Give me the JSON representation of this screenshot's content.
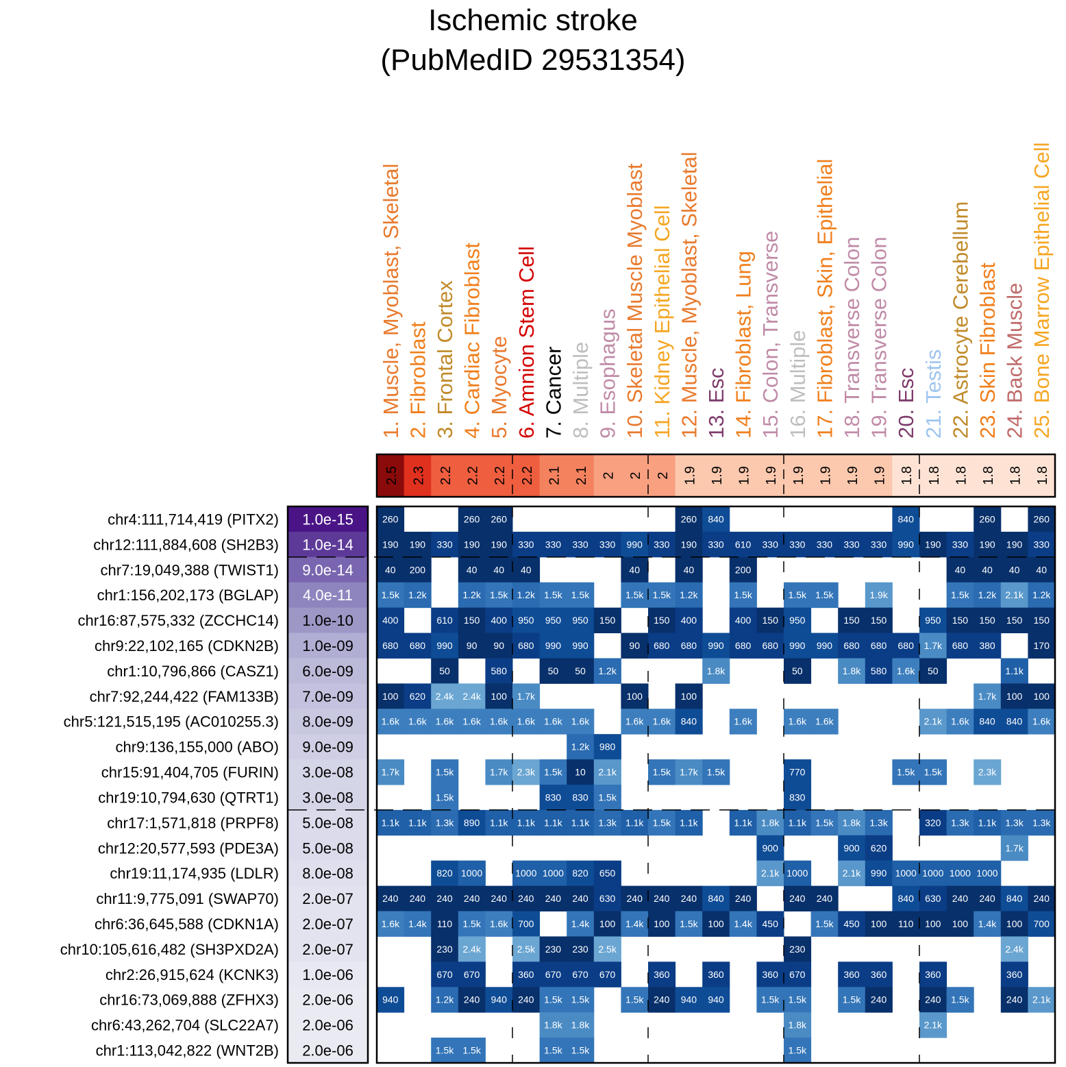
{
  "chart_data": {
    "type": "heatmap",
    "title": "Ischemic stroke",
    "subtitle": "(PubMedID 29531354)",
    "columns": [
      {
        "label": "1. Muscle, Myoblast, Skeletal",
        "color": "#E87A2E",
        "score": "2.5"
      },
      {
        "label": "2. Fibroblast",
        "color": "#F07F1C",
        "score": "2.3"
      },
      {
        "label": "3. Frontal Cortex",
        "color": "#C08A2A",
        "score": "2.2"
      },
      {
        "label": "4. Cardiac Fibroblast",
        "color": "#F07F1C",
        "score": "2.2"
      },
      {
        "label": "5. Myocyte",
        "color": "#E87A2E",
        "score": "2.2"
      },
      {
        "label": "6. Amnion Stem Cell",
        "color": "#D40000",
        "score": "2.2"
      },
      {
        "label": "7. Cancer",
        "color": "#000000",
        "score": "2.1"
      },
      {
        "label": "8. Multiple",
        "color": "#BEBEBE",
        "score": "2.1"
      },
      {
        "label": "9. Esophagus",
        "color": "#C08BA8",
        "score": "2"
      },
      {
        "label": "10. Skeletal Muscle Myoblast",
        "color": "#E87A2E",
        "score": "2"
      },
      {
        "label": "11. Kidney Epithelial Cell",
        "color": "#F5A623",
        "score": "2"
      },
      {
        "label": "12. Muscle, Myoblast, Skeletal",
        "color": "#E87A2E",
        "score": "1.9"
      },
      {
        "label": "13. Esc",
        "color": "#7E3B6B",
        "score": "1.9"
      },
      {
        "label": "14. Fibroblast, Lung",
        "color": "#F07F1C",
        "score": "1.9"
      },
      {
        "label": "15. Colon, Transverse",
        "color": "#C08BA8",
        "score": "1.9"
      },
      {
        "label": "16. Multiple",
        "color": "#BEBEBE",
        "score": "1.9"
      },
      {
        "label": "17. Fibroblast, Skin, Epithelial",
        "color": "#F07F1C",
        "score": "1.9"
      },
      {
        "label": "18. Transverse Colon",
        "color": "#C08BA8",
        "score": "1.9"
      },
      {
        "label": "19. Transverse Colon",
        "color": "#C08BA8",
        "score": "1.9"
      },
      {
        "label": "20. Esc",
        "color": "#7E3B6B",
        "score": "1.8"
      },
      {
        "label": "21. Testis",
        "color": "#9EC5F0",
        "score": "1.8"
      },
      {
        "label": "22. Astrocyte Cerebellum",
        "color": "#C08A2A",
        "score": "1.8"
      },
      {
        "label": "23. Skin Fibroblast",
        "color": "#F07F1C",
        "score": "1.8"
      },
      {
        "label": "24. Back Muscle",
        "color": "#C06A6A",
        "score": "1.8"
      },
      {
        "label": "25. Bone Marrow Epithelial Cell",
        "color": "#F5A623",
        "score": "1.8"
      }
    ],
    "rows": [
      {
        "locus": "chr4:111,714,419 (PITX2)",
        "pvalue": "1.0e-15",
        "cells": [
          "260",
          "",
          "",
          "260",
          "260",
          "",
          "",
          "",
          "",
          "",
          "",
          "260",
          "840",
          "",
          "",
          "",
          "",
          "",
          "",
          "840",
          "",
          "",
          "260",
          "",
          "260"
        ]
      },
      {
        "locus": "chr12:111,884,608 (SH2B3)",
        "pvalue": "1.0e-14",
        "cells": [
          "190",
          "190",
          "330",
          "190",
          "190",
          "330",
          "330",
          "330",
          "330",
          "990",
          "330",
          "190",
          "330",
          "610",
          "330",
          "330",
          "330",
          "330",
          "330",
          "990",
          "190",
          "330",
          "190",
          "190",
          "330"
        ]
      },
      {
        "locus": "chr7:19,049,388 (TWIST1)",
        "pvalue": "9.0e-14",
        "cells": [
          "40",
          "200",
          "",
          "40",
          "40",
          "40",
          "",
          "",
          "",
          "40",
          "",
          "40",
          "",
          "200",
          "",
          "",
          "",
          "",
          "",
          "",
          "",
          "40",
          "40",
          "40",
          "40"
        ]
      },
      {
        "locus": "chr1:156,202,173 (BGLAP)",
        "pvalue": "4.0e-11",
        "cells": [
          "1.5k",
          "1.2k",
          "",
          "1.2k",
          "1.5k",
          "1.2k",
          "1.5k",
          "1.5k",
          "",
          "1.5k",
          "1.5k",
          "1.2k",
          "",
          "1.5k",
          "",
          "1.5k",
          "1.5k",
          "",
          "1.9k",
          "",
          "",
          "1.5k",
          "1.2k",
          "2.1k",
          "1.2k"
        ]
      },
      {
        "locus": "chr16:87,575,332 (ZCCHC14)",
        "pvalue": "1.0e-10",
        "cells": [
          "400",
          "",
          "610",
          "150",
          "400",
          "950",
          "950",
          "950",
          "150",
          "",
          "150",
          "400",
          "",
          "400",
          "150",
          "950",
          "",
          "150",
          "150",
          "",
          "950",
          "150",
          "150",
          "150",
          "150"
        ]
      },
      {
        "locus": "chr9:22,102,165 (CDKN2B)",
        "pvalue": "1.0e-09",
        "cells": [
          "680",
          "680",
          "990",
          "90",
          "90",
          "680",
          "990",
          "990",
          "",
          "90",
          "680",
          "680",
          "990",
          "680",
          "680",
          "990",
          "990",
          "680",
          "680",
          "680",
          "1.7k",
          "680",
          "380",
          "",
          "170"
        ]
      },
      {
        "locus": "chr1:10,796,866 (CASZ1)",
        "pvalue": "6.0e-09",
        "cells": [
          "",
          "",
          "50",
          "",
          "580",
          "",
          "50",
          "50",
          "1.2k",
          "",
          "",
          "",
          "1.8k",
          "",
          "",
          "50",
          "",
          "1.8k",
          "580",
          "1.6k",
          "50",
          "",
          "",
          "1.1k",
          ""
        ]
      },
      {
        "locus": "chr7:92,244,422 (FAM133B)",
        "pvalue": "7.0e-09",
        "cells": [
          "100",
          "620",
          "2.4k",
          "2.4k",
          "100",
          "1.7k",
          "",
          "",
          "",
          "100",
          "",
          "100",
          "",
          "",
          "",
          "",
          "",
          "",
          "",
          "",
          "",
          "",
          "1.7k",
          "100",
          "100"
        ]
      },
      {
        "locus": "chr5:121,515,195 (AC010255.3)",
        "pvalue": "8.0e-09",
        "cells": [
          "1.6k",
          "1.6k",
          "1.6k",
          "1.6k",
          "1.6k",
          "1.6k",
          "1.6k",
          "1.6k",
          "",
          "1.6k",
          "1.6k",
          "840",
          "",
          "1.6k",
          "",
          "1.6k",
          "1.6k",
          "",
          "",
          "",
          "2.1k",
          "1.6k",
          "840",
          "840",
          "1.6k"
        ]
      },
      {
        "locus": "chr9:136,155,000 (ABO)",
        "pvalue": "9.0e-09",
        "cells": [
          "",
          "",
          "",
          "",
          "",
          "",
          "",
          "1.2k",
          "980",
          "",
          "",
          "",
          "",
          "",
          "",
          "",
          "",
          "",
          "",
          "",
          "",
          "",
          "",
          "",
          ""
        ]
      },
      {
        "locus": "chr15:91,404,705 (FURIN)",
        "pvalue": "3.0e-08",
        "cells": [
          "1.7k",
          "",
          "1.5k",
          "",
          "1.7k",
          "2.3k",
          "1.5k",
          "10",
          "2.1k",
          "",
          "1.5k",
          "1.7k",
          "1.5k",
          "",
          "",
          "770",
          "",
          "",
          "",
          "1.5k",
          "1.5k",
          "",
          "2.3k",
          "",
          ""
        ]
      },
      {
        "locus": "chr19:10,794,630 (QTRT1)",
        "pvalue": "3.0e-08",
        "cells": [
          "",
          "",
          "1.5k",
          "",
          "",
          "",
          "830",
          "830",
          "1.5k",
          "",
          "",
          "",
          "",
          "",
          "",
          "830",
          "",
          "",
          "",
          "",
          "",
          "",
          "",
          "",
          ""
        ]
      },
      {
        "locus": "chr17:1,571,818 (PRPF8)",
        "pvalue": "5.0e-08",
        "cells": [
          "1.1k",
          "1.1k",
          "1.3k",
          "890",
          "1.1k",
          "1.1k",
          "1.1k",
          "1.1k",
          "1.3k",
          "1.1k",
          "1.5k",
          "1.1k",
          "",
          "1.1k",
          "1.8k",
          "1.1k",
          "1.5k",
          "1.8k",
          "1.3k",
          "",
          "320",
          "1.3k",
          "1.1k",
          "1.3k",
          "1.3k"
        ]
      },
      {
        "locus": "chr12:20,577,593 (PDE3A)",
        "pvalue": "5.0e-08",
        "cells": [
          "",
          "",
          "",
          "",
          "",
          "",
          "",
          "",
          "",
          "",
          "",
          "",
          "",
          "",
          "900",
          "",
          "",
          "900",
          "620",
          "",
          "",
          "",
          "",
          "1.7k",
          ""
        ]
      },
      {
        "locus": "chr19:11,174,935 (LDLR)",
        "pvalue": "8.0e-08",
        "cells": [
          "",
          "",
          "820",
          "1000",
          "",
          "1000",
          "1000",
          "820",
          "650",
          "",
          "",
          "",
          "",
          "",
          "2.1k",
          "1000",
          "",
          "2.1k",
          "990",
          "1000",
          "1000",
          "1000",
          "1000",
          "",
          ""
        ]
      },
      {
        "locus": "chr11:9,775,091 (SWAP70)",
        "pvalue": "2.0e-07",
        "cells": [
          "240",
          "240",
          "240",
          "240",
          "240",
          "240",
          "240",
          "240",
          "630",
          "240",
          "240",
          "240",
          "840",
          "240",
          "",
          "240",
          "240",
          "",
          "",
          "840",
          "630",
          "240",
          "240",
          "840",
          "240"
        ]
      },
      {
        "locus": "chr6:36,645,588 (CDKN1A)",
        "pvalue": "2.0e-07",
        "cells": [
          "1.6k",
          "1.4k",
          "110",
          "1.5k",
          "1.6k",
          "700",
          "",
          "1.4k",
          "100",
          "1.4k",
          "100",
          "1.5k",
          "100",
          "1.4k",
          "450",
          "",
          "1.5k",
          "450",
          "100",
          "110",
          "100",
          "100",
          "1.4k",
          "100",
          "700"
        ]
      },
      {
        "locus": "chr10:105,616,482 (SH3PXD2A)",
        "pvalue": "2.0e-07",
        "cells": [
          "",
          "",
          "230",
          "2.4k",
          "",
          "2.5k",
          "230",
          "230",
          "2.5k",
          "",
          "",
          "",
          "",
          "",
          "",
          "230",
          "",
          "",
          "",
          "",
          "",
          "",
          "",
          "2.4k",
          ""
        ]
      },
      {
        "locus": "chr2:26,915,624 (KCNK3)",
        "pvalue": "1.0e-06",
        "cells": [
          "",
          "",
          "670",
          "670",
          "",
          "360",
          "670",
          "670",
          "670",
          "",
          "360",
          "",
          "360",
          "",
          "360",
          "670",
          "",
          "360",
          "360",
          "",
          "360",
          "",
          "",
          "360",
          ""
        ]
      },
      {
        "locus": "chr16:73,069,888 (ZFHX3)",
        "pvalue": "2.0e-06",
        "cells": [
          "940",
          "",
          "1.2k",
          "240",
          "940",
          "240",
          "1.5k",
          "1.5k",
          "",
          "1.5k",
          "240",
          "940",
          "940",
          "",
          "1.5k",
          "1.5k",
          "",
          "1.5k",
          "240",
          "",
          "240",
          "1.5k",
          "",
          "240",
          "2.1k"
        ]
      },
      {
        "locus": "chr6:43,262,704 (SLC22A7)",
        "pvalue": "2.0e-06",
        "cells": [
          "",
          "",
          "",
          "",
          "",
          "",
          "1.8k",
          "1.8k",
          "",
          "",
          "",
          "",
          "",
          "",
          "",
          "1.8k",
          "",
          "",
          "",
          "",
          "2.1k",
          "",
          "",
          "",
          ""
        ]
      },
      {
        "locus": "chr1:113,042,822 (WNT2B)",
        "pvalue": "2.0e-06",
        "cells": [
          "",
          "",
          "1.5k",
          "1.5k",
          "",
          "",
          "1.5k",
          "1.5k",
          "",
          "",
          "",
          "",
          "",
          "",
          "",
          "1.5k",
          "",
          "",
          "",
          "",
          "",
          "",
          "",
          "",
          ""
        ]
      }
    ],
    "score_colors": {
      "2.5": "#8B0A0A",
      "2.3": "#E0301E",
      "2.2": "#EF5E3E",
      "2.1": "#F4825F",
      "2": "#F9A080",
      "1.9": "#FCC8AE",
      "1.8": "#FEE3D5"
    },
    "pvalue_colors": [
      "#4A1486",
      "#5E3A98",
      "#7A66B0",
      "#8E85BE",
      "#9D97C6",
      "#B1AED4",
      "#BCBAD9",
      "#C3C1DD",
      "#C9C8E1",
      "#CFCEE4",
      "#D5D5E8",
      "#D5D5E8",
      "#DBDBEB",
      "#DBDBEB",
      "#DFDFED",
      "#E3E3EF",
      "#E3E3EF",
      "#E3E3EF",
      "#E8E8F2",
      "#EAEAF3",
      "#EAEAF3",
      "#EAEAF3"
    ],
    "cell_scale": "distance-based blue scale: small values dark navy, large values light blue"
  }
}
